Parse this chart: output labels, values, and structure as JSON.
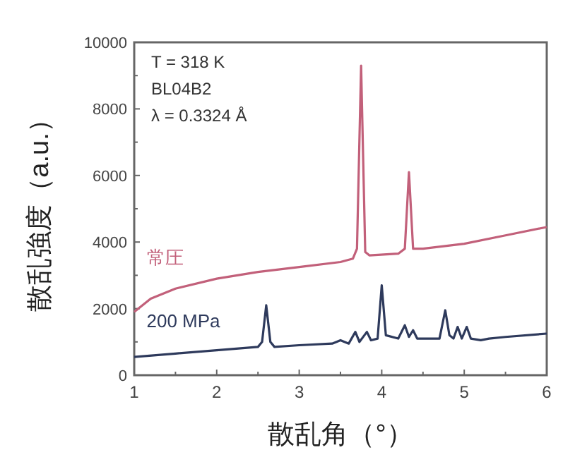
{
  "chart_data": {
    "type": "line",
    "xlabel": "散乱角（°）",
    "ylabel": "散乱強度（a.u.）",
    "xlim": [
      1,
      6
    ],
    "ylim": [
      0,
      10000
    ],
    "xticks": [
      1,
      2,
      3,
      4,
      5,
      6
    ],
    "yticks": [
      0,
      2000,
      4000,
      6000,
      8000,
      10000
    ],
    "grid": false,
    "legend": false,
    "marker": "none",
    "line_style": "solid",
    "annotations": [
      "T = 318 K",
      "BL04B2",
      "λ = 0.3324 Å"
    ],
    "series": [
      {
        "name": "常圧",
        "color": "#c2607a",
        "x": [
          1,
          1.2,
          1.5,
          2,
          2.5,
          3,
          3.5,
          3.65,
          3.7,
          3.75,
          3.8,
          3.85,
          4.2,
          4.28,
          4.33,
          4.38,
          4.5,
          5,
          5.5,
          6
        ],
        "values": [
          1900,
          2300,
          2600,
          2900,
          3100,
          3250,
          3400,
          3500,
          3800,
          9300,
          3700,
          3600,
          3650,
          3800,
          6100,
          3800,
          3800,
          3950,
          4200,
          4450
        ]
      },
      {
        "name": "200 MPa",
        "color": "#2e3a5c",
        "x": [
          1,
          1.5,
          2,
          2.5,
          2.55,
          2.6,
          2.65,
          2.7,
          3,
          3.4,
          3.5,
          3.6,
          3.68,
          3.73,
          3.82,
          3.87,
          3.95,
          4.0,
          4.05,
          4.2,
          4.28,
          4.33,
          4.38,
          4.43,
          4.7,
          4.77,
          4.82,
          4.87,
          4.92,
          4.97,
          5.03,
          5.08,
          5.2,
          5.3,
          5.5,
          6
        ],
        "values": [
          550,
          650,
          750,
          850,
          1000,
          2100,
          1000,
          850,
          900,
          950,
          1050,
          950,
          1300,
          1000,
          1300,
          1050,
          1100,
          2700,
          1200,
          1100,
          1500,
          1150,
          1350,
          1100,
          1100,
          1950,
          1200,
          1100,
          1450,
          1100,
          1450,
          1100,
          1050,
          1100,
          1150,
          1250
        ]
      }
    ]
  }
}
